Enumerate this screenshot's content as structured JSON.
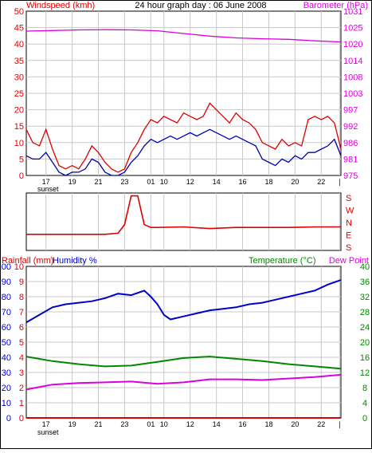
{
  "colors": {
    "red": "#dd0000",
    "navy": "#0000aa",
    "magenta": "#dd00dd",
    "green": "#008800",
    "blue": "#0000cc",
    "grid": "#c8c8c8",
    "frame": "#000000"
  },
  "chart_data": [
    {
      "type": "line",
      "title": "24 hour graph day : 06 June 2008",
      "left_axis_label": "Windspeed (kmh)",
      "right_axis_label": "Barometer (hPa)",
      "left_ticks": [
        "0",
        "5",
        "10",
        "15",
        "20",
        "25",
        "30",
        "35",
        "40",
        "45",
        "50"
      ],
      "left_range": [
        0,
        50
      ],
      "right_ticks": [
        "975",
        "981",
        "986",
        "992",
        "997",
        "1003",
        "1008",
        "1014",
        "1020",
        "1025",
        "1031"
      ],
      "right_range": [
        975,
        1031
      ],
      "x_ticks": [
        "17",
        "19",
        "21",
        "23",
        "01",
        "10",
        "12",
        "14",
        "16",
        "18",
        "20",
        "22",
        "|"
      ],
      "x_sublabel": "sunset",
      "grid": true,
      "series": [
        {
          "label": "windspeed_gust",
          "color": "#dd0000",
          "y_axis": "left",
          "x": [
            0,
            1,
            2,
            3,
            4,
            5,
            6,
            7,
            8,
            9,
            10,
            11,
            12,
            13,
            14,
            15,
            16,
            17,
            18,
            19,
            20,
            21,
            22,
            23,
            24,
            25,
            26,
            27,
            28,
            29,
            30,
            31,
            32,
            33,
            34,
            35,
            36,
            37,
            38,
            39,
            40,
            41,
            42,
            43,
            44,
            45,
            46,
            47,
            48
          ],
          "values": [
            14,
            10,
            9,
            14,
            8,
            3,
            2,
            3,
            2,
            5,
            9,
            7,
            4,
            2,
            1,
            2,
            7,
            10,
            14,
            17,
            16,
            18,
            17,
            16,
            19,
            18,
            17,
            18,
            22,
            20,
            18,
            16,
            19,
            17,
            16,
            14,
            10,
            9,
            8,
            11,
            9,
            10,
            9,
            17,
            18,
            17,
            18,
            16,
            8
          ]
        },
        {
          "label": "windspeed_avg",
          "color": "#0000aa",
          "y_axis": "left",
          "x": [
            0,
            1,
            2,
            3,
            4,
            5,
            6,
            7,
            8,
            9,
            10,
            11,
            12,
            13,
            14,
            15,
            16,
            17,
            18,
            19,
            20,
            21,
            22,
            23,
            24,
            25,
            26,
            27,
            28,
            29,
            30,
            31,
            32,
            33,
            34,
            35,
            36,
            37,
            38,
            39,
            40,
            41,
            42,
            43,
            44,
            45,
            46,
            47,
            48
          ],
          "values": [
            6,
            5,
            5,
            7,
            4,
            1,
            0,
            1,
            1,
            2,
            5,
            4,
            1,
            0,
            0,
            1,
            4,
            6,
            9,
            11,
            10,
            11,
            12,
            11,
            12,
            13,
            12,
            13,
            14,
            13,
            12,
            11,
            12,
            11,
            10,
            9,
            5,
            4,
            3,
            5,
            4,
            6,
            5,
            7,
            7,
            8,
            9,
            11,
            6
          ]
        },
        {
          "label": "barometer",
          "color": "#dd00dd",
          "y_axis": "right",
          "x": [
            0,
            4,
            8,
            12,
            16,
            20,
            24,
            28,
            32,
            36,
            40,
            44,
            48
          ],
          "values": [
            1024.2,
            1024.4,
            1024.6,
            1024.7,
            1024.6,
            1024.3,
            1023.4,
            1022.5,
            1021.9,
            1021.6,
            1021.4,
            1020.9,
            1020.5
          ]
        }
      ]
    },
    {
      "type": "line",
      "right_ticks": [
        "S",
        "E",
        "N",
        "W",
        "S"
      ],
      "series": [
        {
          "label": "wind_direction",
          "color": "#dd0000",
          "x": [
            0,
            4,
            8,
            12,
            14,
            15,
            16,
            17,
            18,
            19,
            20,
            24,
            28,
            32,
            36,
            40,
            44,
            48
          ],
          "values": [
            0.28,
            0.28,
            0.28,
            0.28,
            0.3,
            0.45,
            0.95,
            0.95,
            0.45,
            0.4,
            0.4,
            0.41,
            0.38,
            0.4,
            0.4,
            0.4,
            0.41,
            0.41
          ]
        }
      ]
    },
    {
      "type": "line",
      "left_axis_label": "Rainfall (mm)",
      "left_axis_label2": "Humidity %",
      "right_axis_label": "Temperature (°C)",
      "right_axis_label2": "Dew Point",
      "left_ticks": [
        "0",
        "10",
        "20",
        "30",
        "40",
        "50",
        "60",
        "70",
        "80",
        "90",
        "100"
      ],
      "left_range": [
        0,
        100
      ],
      "rain_ticks": [
        "0",
        "1",
        "2",
        "3",
        "4",
        "5",
        "6",
        "7",
        "8",
        "9",
        "10"
      ],
      "right_ticks": [
        "0",
        "4",
        "8",
        "12",
        "16",
        "20",
        "24",
        "28",
        "32",
        "36",
        "40"
      ],
      "right_range": [
        0,
        40
      ],
      "x_ticks": [
        "17",
        "19",
        "21",
        "23",
        "01",
        "10",
        "12",
        "14",
        "16",
        "18",
        "20",
        "22",
        "|"
      ],
      "x_sublabel": "sunset",
      "grid": true,
      "series": [
        {
          "label": "humidity",
          "color": "#0000cc",
          "y_axis": "left",
          "x": [
            0,
            2,
            4,
            6,
            8,
            10,
            12,
            14,
            16,
            18,
            19,
            20,
            21,
            22,
            24,
            26,
            28,
            30,
            32,
            34,
            36,
            38,
            40,
            42,
            44,
            46,
            48
          ],
          "values": [
            63,
            68,
            73,
            75,
            76,
            77,
            79,
            82,
            81,
            84,
            80,
            75,
            68,
            65,
            67,
            69,
            71,
            72,
            73,
            75,
            76,
            78,
            80,
            82,
            84,
            88,
            91
          ]
        },
        {
          "label": "temperature",
          "color": "#008800",
          "y_axis": "right",
          "x": [
            0,
            4,
            8,
            12,
            16,
            20,
            24,
            28,
            32,
            36,
            40,
            44,
            48
          ],
          "values": [
            16.2,
            15,
            14.2,
            13.6,
            13.8,
            14.8,
            15.8,
            16.2,
            15.6,
            15,
            14.2,
            13.6,
            13
          ]
        },
        {
          "label": "dew_point",
          "color": "#dd00dd",
          "y_axis": "right",
          "x": [
            0,
            4,
            8,
            12,
            16,
            20,
            24,
            28,
            32,
            36,
            40,
            44,
            48
          ],
          "values": [
            7.5,
            8.8,
            9.2,
            9.4,
            9.6,
            9.0,
            9.4,
            10.2,
            10.2,
            10.0,
            10.4,
            10.8,
            11.4
          ]
        },
        {
          "label": "rainfall",
          "color": "#dd0000",
          "y_axis": "left",
          "x": [
            0,
            48
          ],
          "values": [
            0,
            0
          ]
        }
      ]
    }
  ]
}
